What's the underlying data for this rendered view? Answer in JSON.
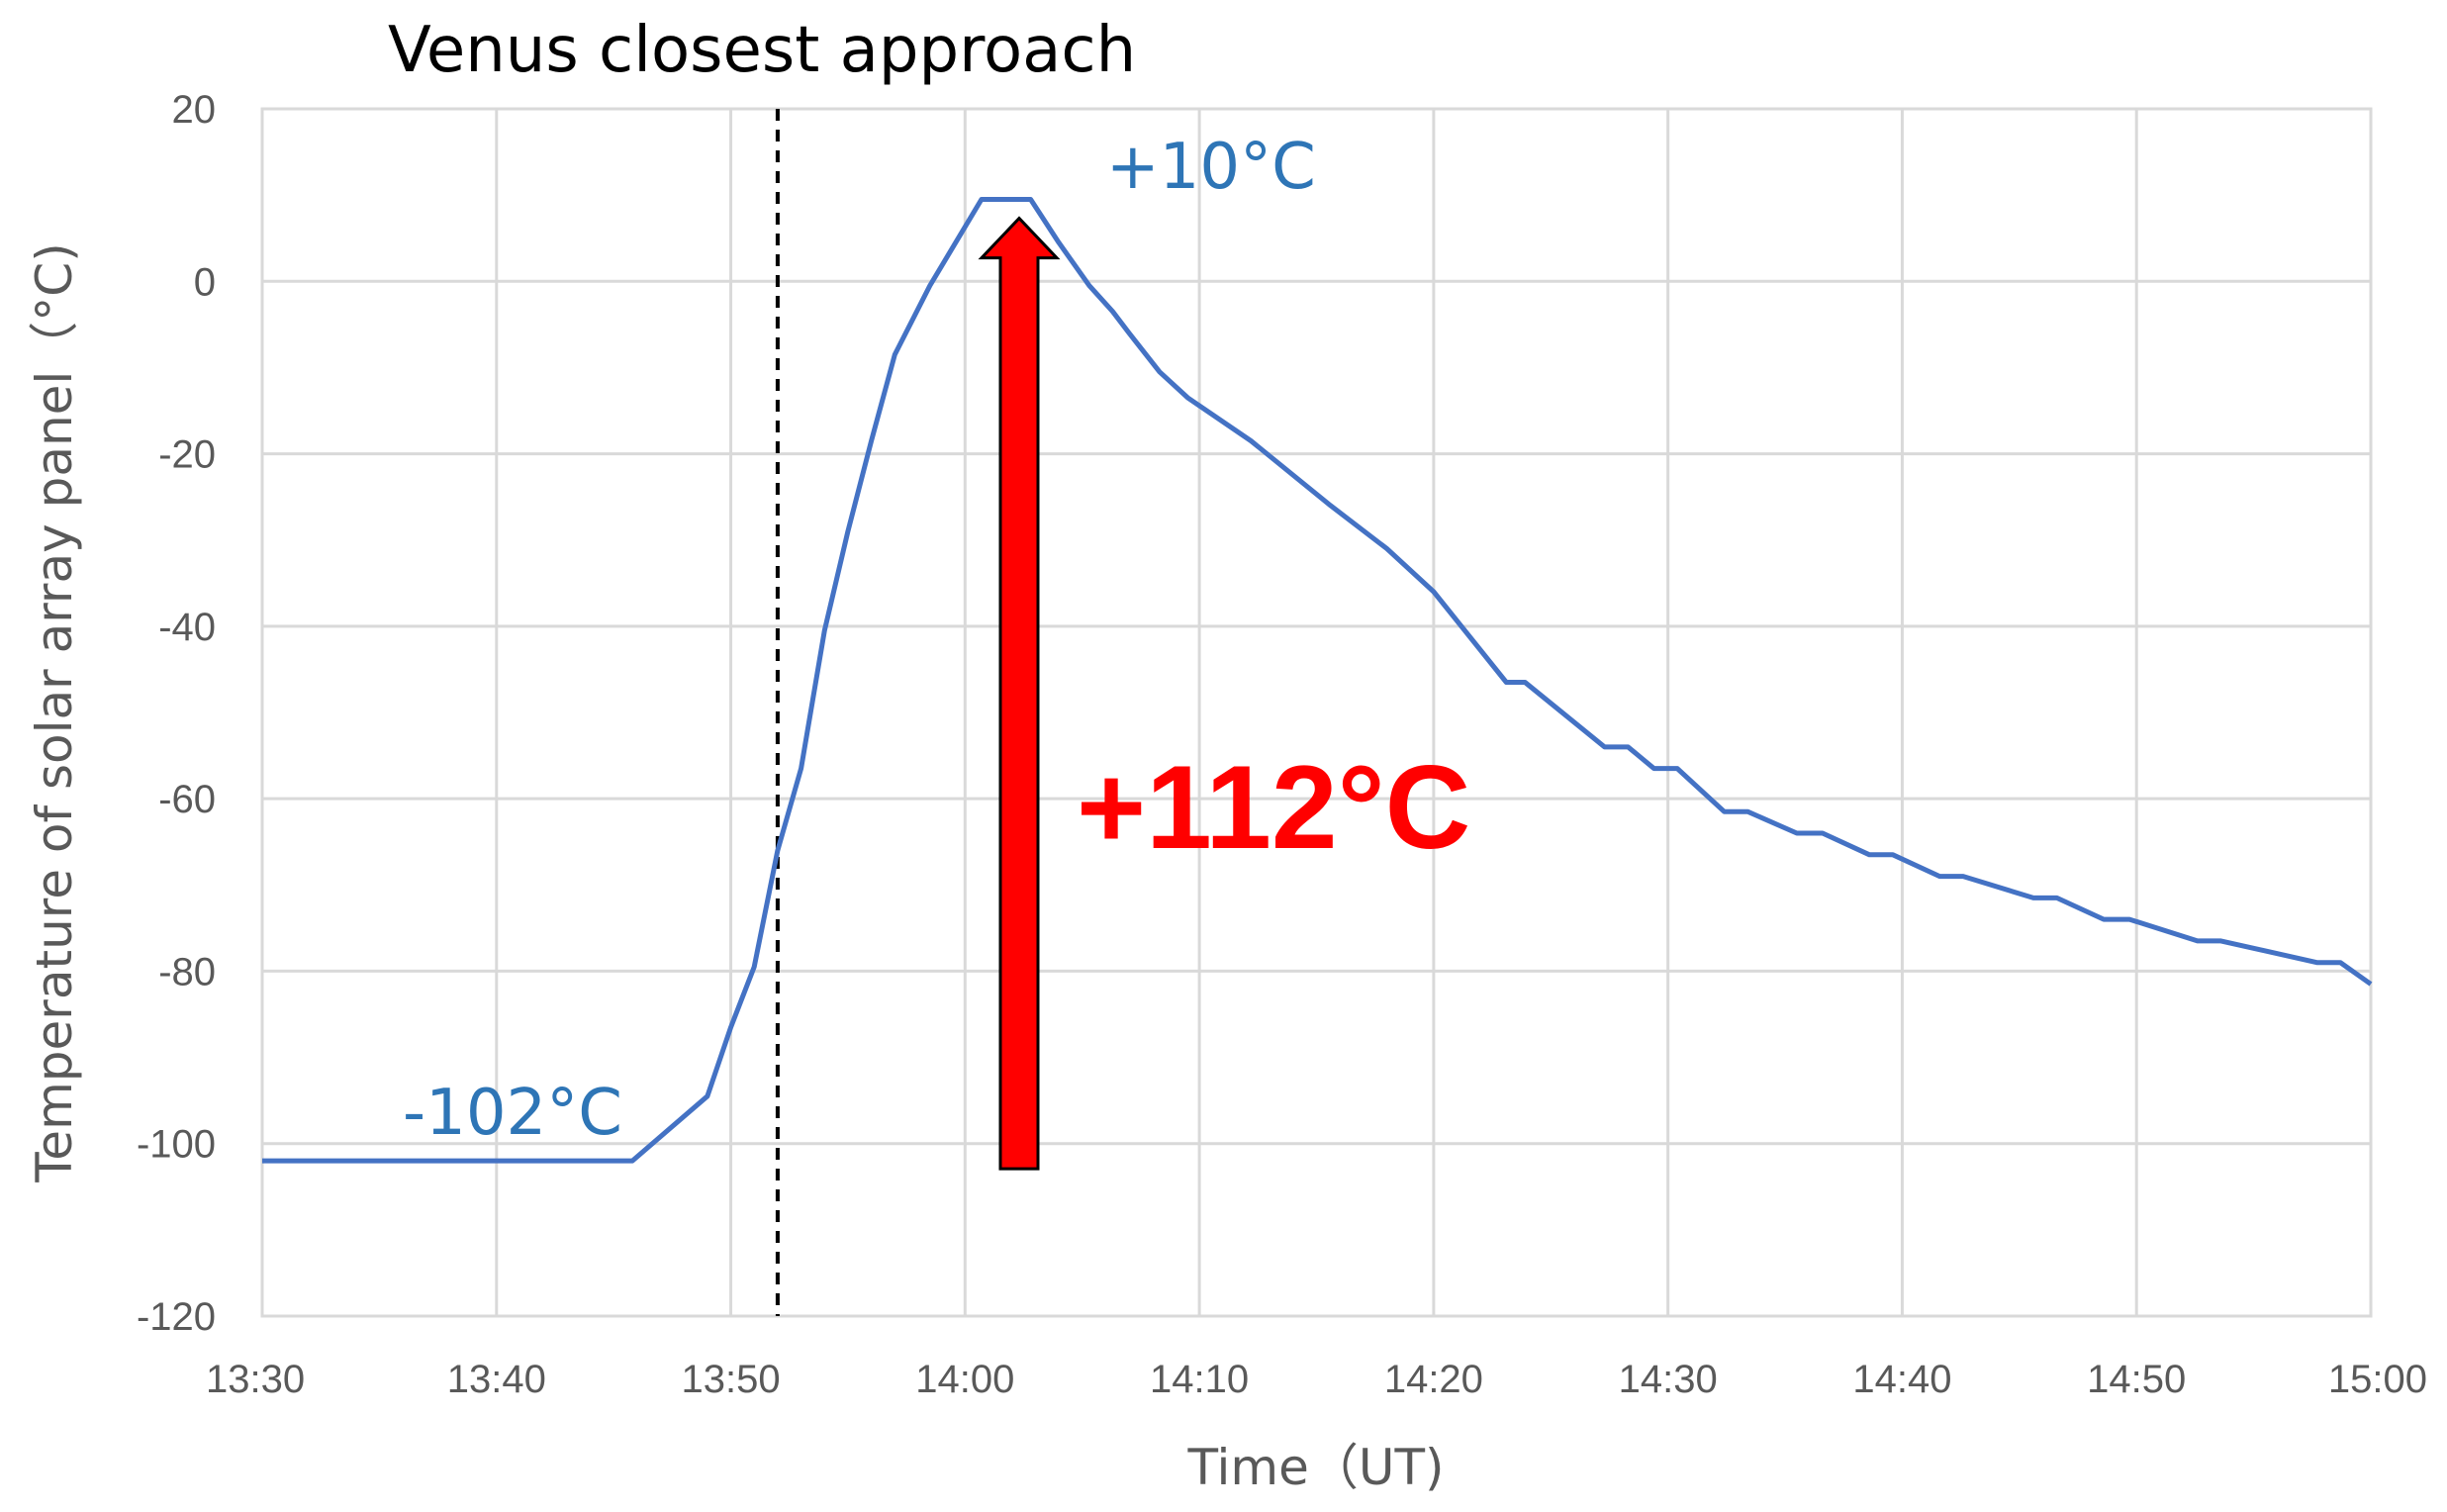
{
  "chart_data": {
    "type": "line",
    "title": "",
    "xlabel": "Time（UT)",
    "ylabel": "Temperature of solar array panel（°C)",
    "xlim": [
      "13:30",
      "15:00"
    ],
    "ylim": [
      -120,
      20
    ],
    "grid": true,
    "legend": "none",
    "colors": {
      "line": "#4472C4",
      "grid": "#D9D9D9",
      "annotation_blue": "#2E75B6",
      "annotation_red": "#FF0000",
      "dashed": "#000000"
    },
    "x_ticks": [
      "13:30",
      "13:40",
      "13:50",
      "14:00",
      "14:10",
      "14:20",
      "14:30",
      "14:40",
      "14:50",
      "15:00"
    ],
    "y_ticks": [
      "20",
      "0",
      "-20",
      "-40",
      "-60",
      "-80",
      "-100",
      "-120"
    ],
    "series": [
      {
        "x_minutes_after_1330": [
          0,
          15.8,
          19,
          20,
          21,
          22,
          23,
          24,
          25,
          26,
          27,
          28.5,
          30.7,
          31.7,
          32.8,
          34,
          35.3,
          36.3,
          37,
          38.3,
          39.5,
          42.2,
          45.6,
          48,
          50,
          53.1,
          53.9,
          57.3,
          58.3,
          59.4,
          60.4,
          62.4,
          63.4,
          65.5,
          66.6,
          68.6,
          69.6,
          71.6,
          72.6,
          75.6,
          76.6,
          78.6,
          79.7,
          82.6,
          83.6,
          87.7,
          88.7,
          90
        ],
        "values": [
          -102,
          -102,
          -94.5,
          -86.5,
          -79.5,
          -66,
          -56.5,
          -40.5,
          -29,
          -18.5,
          -8.5,
          -0.5,
          9.5,
          9.5,
          9.5,
          4.5,
          -0.5,
          -3.5,
          -6,
          -10.5,
          -13.5,
          -18.5,
          -26,
          -31,
          -36,
          -46.5,
          -46.5,
          -54,
          -54,
          -56.5,
          -56.5,
          -61.5,
          -61.5,
          -64,
          -64,
          -66.5,
          -66.5,
          -69,
          -69,
          -71.5,
          -71.5,
          -74,
          -74,
          -76.5,
          -76.5,
          -79,
          -79,
          -81.5
        ]
      }
    ],
    "annotations": {
      "event_label": "Venus closest approach",
      "event_time": "13:52",
      "min_label": "-102°C",
      "max_label": "+10°C",
      "rise_label": "+112°C",
      "rise_arrow_from": -102,
      "rise_arrow_to": 8
    }
  }
}
